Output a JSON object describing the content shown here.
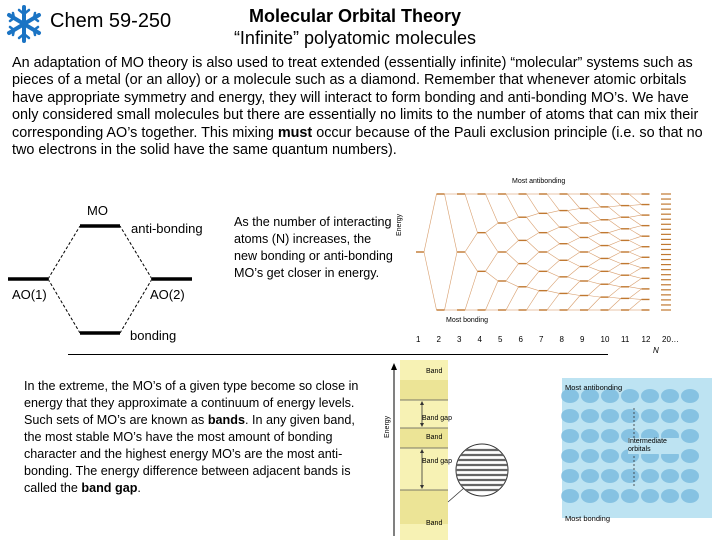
{
  "header": {
    "course": "Chem 59-250",
    "title_line1": "Molecular Orbital Theory",
    "title_line2": "“Infinite” polyatomic molecules"
  },
  "intro": {
    "part1": "An adaptation of MO theory is also used to treat extended (essentially infinite) “molecular” systems such as pieces of a metal (or an alloy) or a molecule such as a diamond.  Remember that whenever atomic orbitals have appropriate symmetry and energy, they will interact to form bonding and anti-bonding MO’s.  We have only considered small molecules but there are essentially no limits to the number of atoms that can mix their corresponding AO’s together.  This mixing ",
    "emph": "must",
    "part2": " occur because of the Pauli exclusion principle (i.e. so that no two electrons in the solid have the same quantum numbers)."
  },
  "mo_diagram": {
    "mo": "MO",
    "antibonding": "anti-bonding",
    "ao1": "AO(1)",
    "ao2": "AO(2)",
    "bonding": "bonding"
  },
  "mo_text": "As the number of interacting atoms (N) increases, the new bonding or anti-bonding MO’s get closer in energy.",
  "chart_top": {
    "most_antibonding": "Most antibonding",
    "most_bonding": "Most bonding",
    "energy": "Energy",
    "n_label": "N",
    "ticks": [
      "1",
      "2",
      "3",
      "4",
      "5",
      "6",
      "7",
      "8",
      "9",
      "10",
      "11",
      "12",
      "20…"
    ]
  },
  "extreme": {
    "p1": "In the extreme, the MO’s of a given type become so close in energy that they approximate a continuum of energy levels.  Such sets of MO’s are known as ",
    "b1": "bands",
    "p2": ".  In any given band, the most stable MO’s have the most amount of bonding character and the highest energy MO’s are the most anti-bonding.  The energy difference between adjacent bands is called the ",
    "b2": "band gap",
    "p3": "."
  },
  "chart_bottom": {
    "energy": "Energy",
    "band1": "Band",
    "gap1": "Band gap",
    "band2": "Band",
    "gap2": "Band gap",
    "band3": "Band",
    "most_antibonding": "Most antibonding",
    "intermediate": "Intermediate orbitals",
    "most_bonding": "Most bonding"
  },
  "colors": {
    "band_yellow": "#f7f2b4",
    "orbital_blue": "#bde3f2",
    "logo_blue": "#1b74c4"
  }
}
